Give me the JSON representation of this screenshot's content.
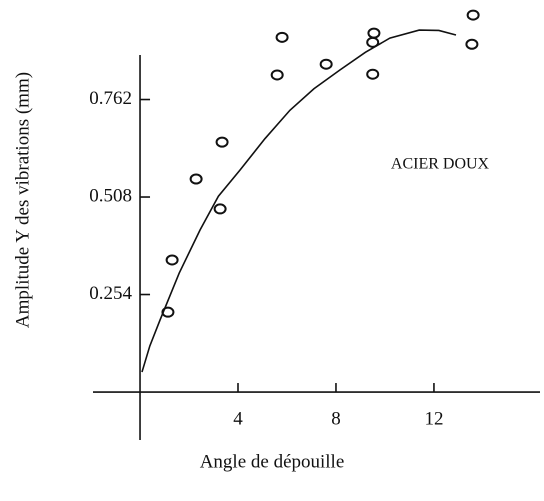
{
  "chart_data": {
    "type": "scatter",
    "xlabel": "Angle de dépouille",
    "ylabel": "Amplitude Y des vibrations (mm)",
    "annotation": "ACIER DOUX",
    "xlim": [
      -1.92,
      16.33
    ],
    "ylim": [
      -0.125,
      0.878
    ],
    "xticks": [
      4,
      8,
      12
    ],
    "yticks": [
      0.254,
      0.508,
      0.762
    ],
    "color": "#111111",
    "points": {
      "x": [
        1.14,
        1.31,
        2.29,
        3.27,
        3.35,
        5.6,
        5.8,
        7.6,
        9.5,
        9.5,
        9.55,
        13.55,
        13.6
      ],
      "y": [
        0.208,
        0.344,
        0.555,
        0.477,
        0.651,
        0.826,
        0.924,
        0.854,
        0.828,
        0.911,
        0.935,
        0.906,
        0.982
      ]
    },
    "curve": {
      "x": [
        0.08,
        0.4,
        0.82,
        1.6,
        2.45,
        3.2,
        4.08,
        5.1,
        6.12,
        7.1,
        8.16,
        9.2,
        10.2,
        11.4,
        12.2,
        12.9
      ],
      "y": [
        0.052,
        0.12,
        0.188,
        0.31,
        0.422,
        0.51,
        0.578,
        0.66,
        0.734,
        0.79,
        0.839,
        0.885,
        0.922,
        0.943,
        0.942,
        0.93
      ]
    }
  }
}
